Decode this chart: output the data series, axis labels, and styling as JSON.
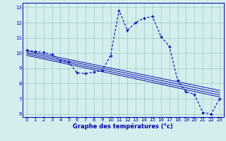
{
  "title": "Graphe des températures (°c)",
  "bg_color": "#d4eeee",
  "grid_color": "#aacccc",
  "line_color": "#0000aa",
  "xlim": [
    -0.5,
    23.5
  ],
  "ylim": [
    5.8,
    13.3
  ],
  "xticks": [
    0,
    1,
    2,
    3,
    4,
    5,
    6,
    7,
    8,
    9,
    10,
    11,
    12,
    13,
    14,
    15,
    16,
    17,
    18,
    19,
    20,
    21,
    22,
    23
  ],
  "yticks": [
    6,
    7,
    8,
    9,
    10,
    11,
    12,
    13
  ],
  "main_x": [
    0,
    1,
    2,
    3,
    4,
    5,
    6,
    7,
    8,
    9,
    10,
    11,
    12,
    13,
    14,
    15,
    16,
    17,
    18,
    19,
    20,
    21,
    22,
    23
  ],
  "main_y": [
    10.2,
    10.1,
    10.05,
    9.9,
    9.5,
    9.4,
    8.7,
    8.65,
    8.75,
    8.85,
    9.85,
    12.8,
    11.5,
    12.0,
    12.3,
    12.4,
    11.1,
    10.45,
    8.2,
    7.45,
    7.3,
    6.1,
    6.0,
    7.0
  ],
  "reg_lines": [
    {
      "x": [
        0,
        23
      ],
      "y": [
        10.15,
        7.55
      ]
    },
    {
      "x": [
        0,
        23
      ],
      "y": [
        10.05,
        7.4
      ]
    },
    {
      "x": [
        0,
        23
      ],
      "y": [
        9.95,
        7.25
      ]
    },
    {
      "x": [
        0,
        23
      ],
      "y": [
        9.85,
        7.12
      ]
    }
  ],
  "xlabel_fontsize": 6.0,
  "tick_fontsize": 5.0
}
